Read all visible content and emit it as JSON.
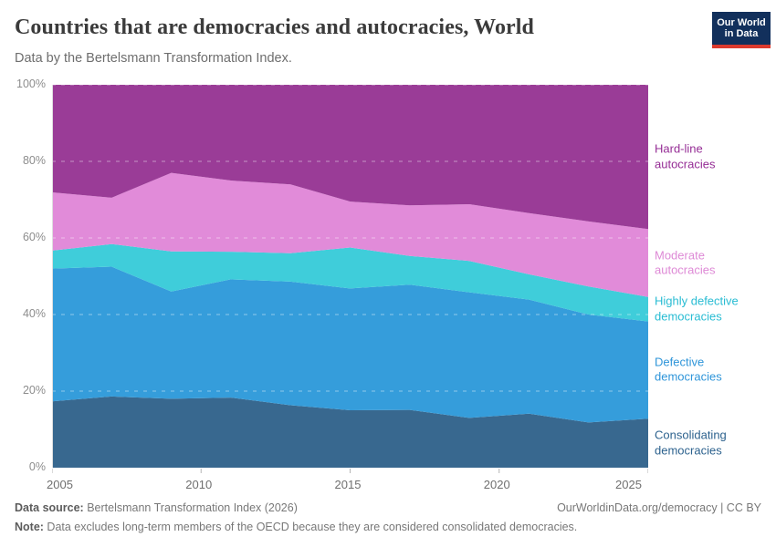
{
  "header": {
    "title": "Countries that are democracies and autocracies, World",
    "subtitle": "Data by the Bertelsmann Transformation Index.",
    "logo": {
      "line1": "Our World",
      "line2": "in Data",
      "bg_color": "#12305c",
      "accent_color": "#dc3a2e"
    }
  },
  "chart_data": {
    "type": "area",
    "stacked": true,
    "title": "Countries that are democracies and autocracies, World",
    "x": [
      2005,
      2007,
      2009,
      2011,
      2013,
      2015,
      2017,
      2019,
      2021,
      2023,
      2025
    ],
    "x_ticks": [
      2005,
      2010,
      2015,
      2020,
      2025
    ],
    "y_ticks": [
      0,
      20,
      40,
      60,
      80,
      100
    ],
    "y_tick_suffix": "%",
    "ylim": [
      0,
      100
    ],
    "xlabel": "",
    "ylabel": "",
    "grid": "dashed horizontal",
    "legend_position": "right",
    "series": [
      {
        "name": "Consolidating democracies",
        "color": "#38688f",
        "label_color": "#2d628e",
        "values": [
          17.3,
          18.6,
          18.0,
          18.3,
          16.3,
          15.0,
          15.1,
          13.0,
          14.1,
          11.8,
          12.8
        ]
      },
      {
        "name": "Defective democracies",
        "color": "#359ddb",
        "label_color": "#2e95d9",
        "values": [
          34.7,
          33.9,
          28.0,
          30.9,
          32.3,
          31.8,
          32.7,
          32.8,
          29.8,
          28.2,
          25.4
        ]
      },
      {
        "name": "Highly defective democracies",
        "color": "#3fcdda",
        "label_color": "#28bcd3",
        "values": [
          4.7,
          5.9,
          10.5,
          7.2,
          7.4,
          10.7,
          7.5,
          8.2,
          6.6,
          7.3,
          6.4
        ]
      },
      {
        "name": "Moderate autocracies",
        "color": "#e18bd9",
        "label_color": "#de8ad6",
        "values": [
          15.2,
          12.1,
          20.5,
          18.6,
          18.0,
          12.0,
          13.2,
          14.8,
          16.0,
          17.0,
          17.7
        ]
      },
      {
        "name": "Hard-line autocracies",
        "color": "#9a3c97",
        "label_color": "#952d95",
        "values": [
          28.1,
          29.5,
          23.0,
          25.0,
          26.0,
          30.5,
          31.5,
          31.2,
          33.5,
          35.7,
          37.7
        ]
      }
    ]
  },
  "footer": {
    "source_label": "Data source:",
    "source_text": " Bertelsmann Transformation Index (2026)",
    "attribution": "OurWorldinData.org/democracy | CC BY",
    "note_label": "Note:",
    "note_text": " Data excludes long-term members of the OECD because they are considered consolidated democracies."
  }
}
